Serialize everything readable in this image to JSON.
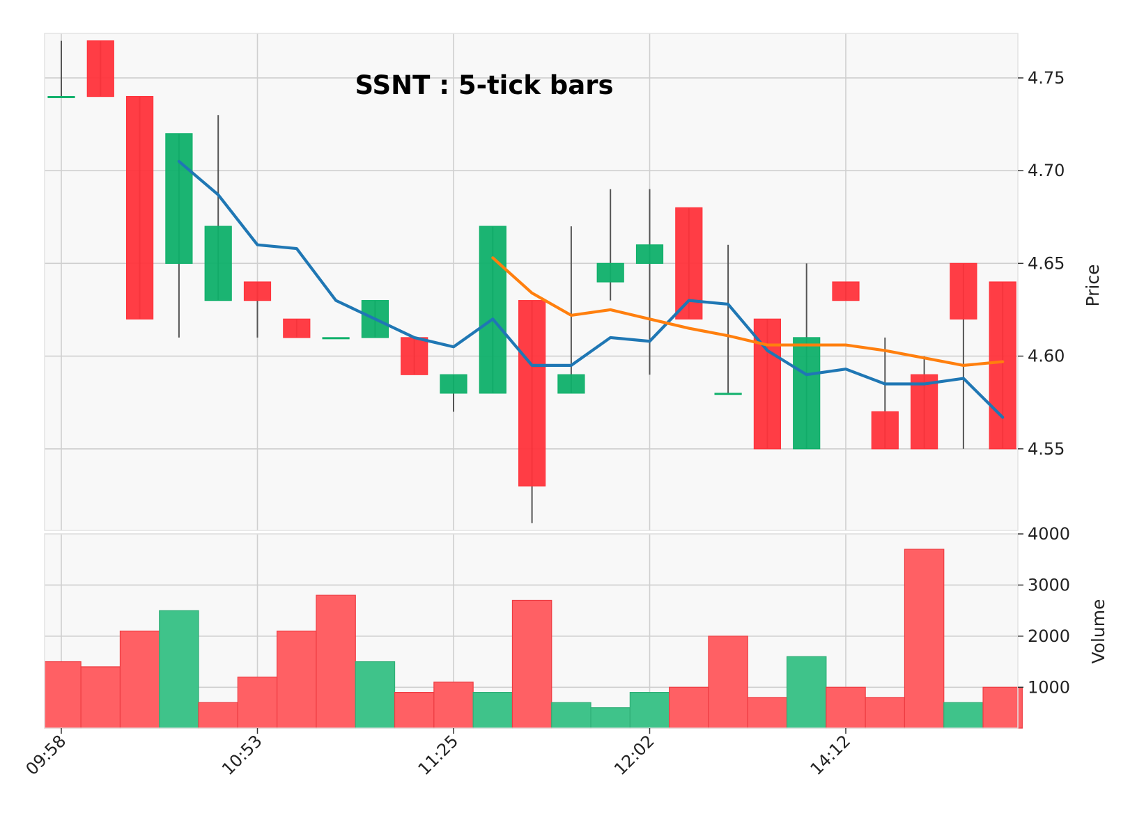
{
  "chart_data": {
    "type": "candlestick",
    "title": "SSNT : 5-tick bars",
    "colors": {
      "up": "#0fb06a",
      "down": "#ff333b",
      "wick": "#555555",
      "ma_fast": "#1f77b4",
      "ma_slow": "#ff7f0e",
      "vol_up": "#3fc38a",
      "vol_down": "#ff6064",
      "grid": "#cfcfcf",
      "panel": "#f8f8f8"
    },
    "price_panel": {
      "ylabel": "Price",
      "yticks": [
        4.55,
        4.6,
        4.65,
        4.7,
        4.75
      ],
      "ytick_labels": [
        "4.55",
        "4.60",
        "4.65",
        "4.70",
        "4.75"
      ],
      "ylim": [
        4.506,
        4.774
      ]
    },
    "volume_panel": {
      "ylabel": "Volume",
      "yticks": [
        1000,
        2000,
        3000,
        4000
      ],
      "ytick_labels": [
        "1000",
        "2000",
        "3000",
        "4000"
      ],
      "ylim": [
        200,
        4000
      ]
    },
    "x_ticks": [
      {
        "index": 0,
        "label": "09:58"
      },
      {
        "index": 5,
        "label": "10:53"
      },
      {
        "index": 10,
        "label": "11:25"
      },
      {
        "index": 15,
        "label": "12:02"
      },
      {
        "index": 20,
        "label": "14:12"
      }
    ],
    "candles": [
      {
        "o": 4.74,
        "h": 4.77,
        "l": 4.74,
        "c": 4.74,
        "v": 1500
      },
      {
        "o": 4.77,
        "h": 4.77,
        "l": 4.74,
        "c": 4.74,
        "v": 1400
      },
      {
        "o": 4.74,
        "h": 4.74,
        "l": 4.62,
        "c": 4.62,
        "v": 2100
      },
      {
        "o": 4.65,
        "h": 4.72,
        "l": 4.61,
        "c": 4.72,
        "v": 2500
      },
      {
        "o": 4.63,
        "h": 4.73,
        "l": 4.63,
        "c": 4.67,
        "v": 700
      },
      {
        "o": 4.64,
        "h": 4.64,
        "l": 4.61,
        "c": 4.63,
        "v": 1200
      },
      {
        "o": 4.62,
        "h": 4.62,
        "l": 4.61,
        "c": 4.61,
        "v": 2100
      },
      {
        "o": 4.61,
        "h": 4.61,
        "l": 4.61,
        "c": 4.61,
        "v": 2800
      },
      {
        "o": 4.61,
        "h": 4.63,
        "l": 4.61,
        "c": 4.63,
        "v": 1500
      },
      {
        "o": 4.61,
        "h": 4.61,
        "l": 4.59,
        "c": 4.59,
        "v": 900
      },
      {
        "o": 4.58,
        "h": 4.59,
        "l": 4.57,
        "c": 4.59,
        "v": 1100
      },
      {
        "o": 4.58,
        "h": 4.67,
        "l": 4.58,
        "c": 4.67,
        "v": 900
      },
      {
        "o": 4.63,
        "h": 4.63,
        "l": 4.51,
        "c": 4.53,
        "v": 2700
      },
      {
        "o": 4.58,
        "h": 4.67,
        "l": 4.58,
        "c": 4.59,
        "v": 700
      },
      {
        "o": 4.64,
        "h": 4.69,
        "l": 4.63,
        "c": 4.65,
        "v": 600
      },
      {
        "o": 4.65,
        "h": 4.69,
        "l": 4.59,
        "c": 4.66,
        "v": 900
      },
      {
        "o": 4.68,
        "h": 4.68,
        "l": 4.62,
        "c": 4.62,
        "v": 1000
      },
      {
        "o": 4.58,
        "h": 4.66,
        "l": 4.58,
        "c": 4.58,
        "v": 2000
      },
      {
        "o": 4.62,
        "h": 4.62,
        "l": 4.55,
        "c": 4.55,
        "v": 800
      },
      {
        "o": 4.55,
        "h": 4.65,
        "l": 4.55,
        "c": 4.61,
        "v": 1600
      },
      {
        "o": 4.64,
        "h": 4.64,
        "l": 4.63,
        "c": 4.63,
        "v": 1000
      },
      {
        "o": 4.57,
        "h": 4.61,
        "l": 4.55,
        "c": 4.55,
        "v": 800
      },
      {
        "o": 4.59,
        "h": 4.6,
        "l": 4.55,
        "c": 4.55,
        "v": 3700
      },
      {
        "o": 4.65,
        "h": 4.65,
        "l": 4.55,
        "c": 4.62,
        "v": 700
      },
      {
        "o": 4.64,
        "h": 4.64,
        "l": 4.55,
        "c": 4.55,
        "v": 1000
      }
    ],
    "volume_up_flags": [
      false,
      false,
      false,
      true,
      false,
      false,
      false,
      false,
      true,
      false,
      false,
      true,
      false,
      true,
      true,
      true,
      false,
      false,
      false,
      true,
      false,
      false,
      false,
      true,
      false
    ],
    "ma_fast": {
      "start_index": 3,
      "values": [
        4.705,
        4.687,
        4.66,
        4.658,
        4.63,
        4.62,
        4.61,
        4.605,
        4.62,
        4.595,
        4.595,
        4.61,
        4.608,
        4.63,
        4.628,
        4.603,
        4.59,
        4.593,
        4.585,
        4.585,
        4.588,
        4.567
      ]
    },
    "ma_slow": {
      "start_index": 11,
      "values": [
        4.653,
        4.634,
        4.622,
        4.625,
        4.62,
        4.615,
        4.611,
        4.606,
        4.606,
        4.606,
        4.603,
        4.599,
        4.595,
        4.597
      ]
    }
  }
}
